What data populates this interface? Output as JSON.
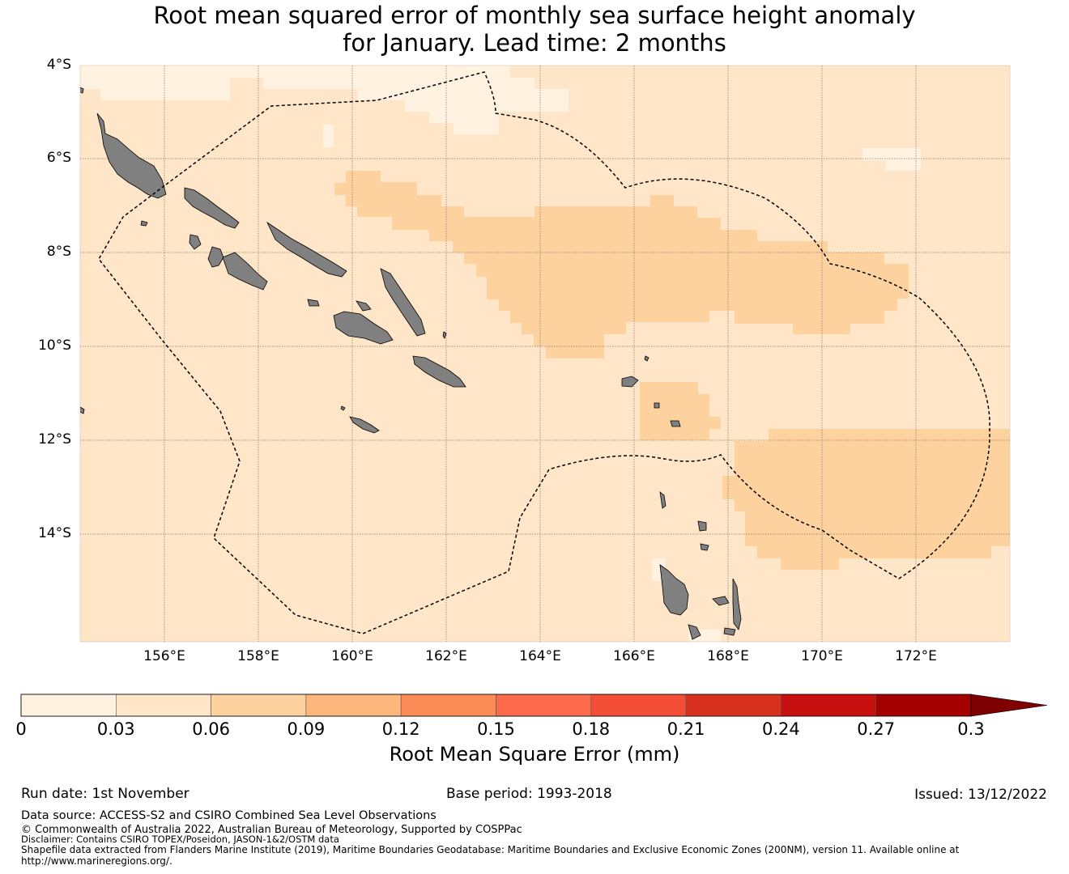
{
  "title": {
    "line1": "Root mean squared error of monthly sea surface height anomaly",
    "line2": "for January. Lead time: 2 months"
  },
  "axes": {
    "lat_labels": [
      "4°S",
      "6°S",
      "8°S",
      "10°S",
      "12°S",
      "14°S"
    ],
    "lon_labels": [
      "156°E",
      "158°E",
      "160°E",
      "162°E",
      "164°E",
      "166°E",
      "168°E",
      "170°E",
      "172°E"
    ]
  },
  "colorbar": {
    "ticks": [
      "0",
      "0.03",
      "0.06",
      "0.09",
      "0.12",
      "0.15",
      "0.18",
      "0.21",
      "0.24",
      "0.27",
      "0.3"
    ],
    "colors": [
      "#fff2e1",
      "#ffe6c8",
      "#fdd29e",
      "#fdb77d",
      "#fc8d59",
      "#fb6b4b",
      "#f44d38",
      "#d7301f",
      "#c80f0f",
      "#a50000"
    ],
    "extend_color": "#7f0000",
    "label": "Root Mean Square Error (mm)"
  },
  "footer": {
    "run_date": "Run date: 1st November",
    "base_period": "Base period: 1993-2018",
    "issued": "Issued: 13/12/2022",
    "data_source": "Data source: ACCESS-S2 and CSIRO Combined Sea Level Observations",
    "copyright": "© Commonwealth of Australia 2022, Australian Bureau of Meteorology, Supported by COSPPac",
    "disclaimer": "Disclaimer: Contains CSIRO TOPEX/Poseidon, JASON-1&2/OSTM data",
    "shapefile": "Shapefile data extracted from Flanders Marine Institute (2019), Maritime Boundaries Geodatabase: Maritime Boundaries and Exclusive Economic Zones (200NM), version 11. Available online at",
    "url": "http://www.marineregions.org/."
  },
  "map_colors": {
    "background": "#ffe6c8",
    "lowest": "#fff2e1",
    "higher": "#fdd29e",
    "land": "#808080",
    "grid": "#8c7b6a",
    "boundary": "#000000"
  }
}
